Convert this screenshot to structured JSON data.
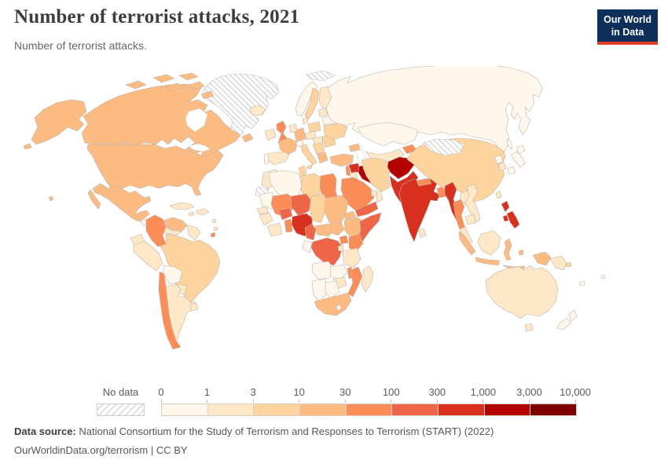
{
  "header": {
    "title": "Number of terrorist attacks, 2021",
    "subtitle": "Number of terrorist attacks.",
    "logo": {
      "line1": "Our World",
      "line2": "in Data"
    }
  },
  "legend": {
    "no_data_label": "No data",
    "ticks": [
      "0",
      "1",
      "3",
      "10",
      "30",
      "100",
      "300",
      "1,000",
      "3,000",
      "10,000"
    ]
  },
  "footer": {
    "source_label": "Data source:",
    "source_text": " National Consortium for the Study of Terrorism and Responses to Terrorism (START) (2022)",
    "link_text": "OurWorldinData.org/terrorism",
    "suffix": " | CC BY"
  },
  "colors": {
    "logo_bg": "#0e2f5a",
    "logo_accent": "#dd3e27",
    "map_border": "#b9b4ab"
  },
  "chart_data": {
    "type": "choropleth_map",
    "title": "Number of terrorist attacks, 2021",
    "year": 2021,
    "unit": "terrorist attacks",
    "legend_position": "bottom",
    "scale": "log-binned",
    "bins": [
      "0-1",
      "1-3",
      "3-10",
      "10-30",
      "30-100",
      "100-300",
      "300-1,000",
      "1,000-3,000",
      "3,000-10,000"
    ],
    "palette": [
      "#fff7ec",
      "#fee8c8",
      "#fdd49e",
      "#fdbb84",
      "#fc8d59",
      "#ef6548",
      "#d7301f",
      "#b30000",
      "#7f0000"
    ],
    "no_data": [
      "greenland",
      "svalbard",
      "mongolia",
      "western-sahara"
    ],
    "countries": {
      "canada": "10-30",
      "united-states": "10-30",
      "mexico": "10-30",
      "guatemala-region": "0-1",
      "panama-region": "1-3",
      "cuba": "1-3",
      "hispaniola": "1-3",
      "jamaica": "1-3",
      "lesser-antilles": "1-3",
      "trinidad-and-tobago": "30-100",
      "colombia": "30-100",
      "venezuela": "10-30",
      "guyana-region": "1-3",
      "ecuador": "1-3",
      "peru": "1-3",
      "brazil": "3-10",
      "bolivia": "0-1",
      "paraguay": "1-3",
      "chile": "30-100",
      "argentina": "1-3",
      "uruguay": "1-3",
      "iceland": "1-3",
      "ireland": "1-3",
      "united-kingdom": "30-100",
      "norway": "0-1",
      "sweden": "3-10",
      "finland": "1-3",
      "denmark": "1-3",
      "baltics": "1-3",
      "germany": "10-30",
      "benelux": "1-3",
      "france": "10-30",
      "spain": "1-3",
      "portugal": "0-1",
      "switzerland": "0-1",
      "italy": "3-10",
      "austria-czech": "1-3",
      "poland": "3-10",
      "hungary-region": "1-3",
      "balkans": "3-10",
      "romania-bulgaria": "3-10",
      "greece": "10-30",
      "ukraine": "3-10",
      "belarus": "0-1",
      "russia": "0-1",
      "turkey": "10-30",
      "caucasus": "10-30",
      "syria": "300-1,000",
      "israel-area": "30-100",
      "jordan": "1-3",
      "iraq": "1,000-3,000",
      "iran": "3-10",
      "saudi-arabia": "30-100",
      "yemen": "100-300",
      "oman": "1-3",
      "uae": "1-3",
      "kazakhstan": "0-1",
      "central-asia": "1-3",
      "tajikistan": "30-100",
      "afghanistan": "1,000-3,000",
      "pakistan": "300-1,000",
      "india": "300-1,000",
      "nepal": "30-100",
      "bangladesh": "30-100",
      "sri-lanka": "1-3",
      "myanmar": "300-1,000",
      "thailand": "30-100",
      "laos": "1-3",
      "vietnam": "1-3",
      "cambodia": "1-3",
      "malaysia": "1-3",
      "china": "3-10",
      "korea-north": "0-1",
      "korea-south": "1-3",
      "japan": "0-1",
      "taiwan": "1-3",
      "philippines": "300-1,000",
      "indonesia": "10-30",
      "malaysia-borneo": "1-3",
      "papua-new-guinea": "1-3",
      "timor": "1-3",
      "morocco": "1-3",
      "algeria": "0-1",
      "tunisia": "3-10",
      "libya": "3-10",
      "egypt": "30-100",
      "mauritania": "0-1",
      "senegal": "1-3",
      "mali": "30-100",
      "burkina-faso": "100-300",
      "niger": "100-300",
      "nigeria": "300-1,000",
      "chad": "3-10",
      "sudan": "10-30",
      "eritrea": "10-30",
      "ethiopia": "10-30",
      "somalia": "100-300",
      "guinea-region": "1-3",
      "ivory-coast-ghana": "1-3",
      "togo-benin": "30-100",
      "cameroon": "100-300",
      "central-african-republic": "10-30",
      "south-sudan": "10-30",
      "uganda": "30-100",
      "kenya": "30-100",
      "democratic-republic-of-congo": "100-300",
      "congo-gabon": "0-1",
      "rwanda-burundi": "1-3",
      "tanzania": "1-3",
      "angola": "0-1",
      "zambia": "0-1",
      "malawi": "30-100",
      "mozambique": "30-100",
      "zimbabwe": "1-3",
      "namibia": "0-1",
      "botswana": "0-1",
      "south-africa": "10-30",
      "lesotho": "0-1",
      "madagascar": "1-3",
      "australia": "1-3",
      "new-zealand": "0-1",
      "fiji": "0-1",
      "new-caledonia": "0-1",
      "solomon-islands": "3-10"
    }
  }
}
